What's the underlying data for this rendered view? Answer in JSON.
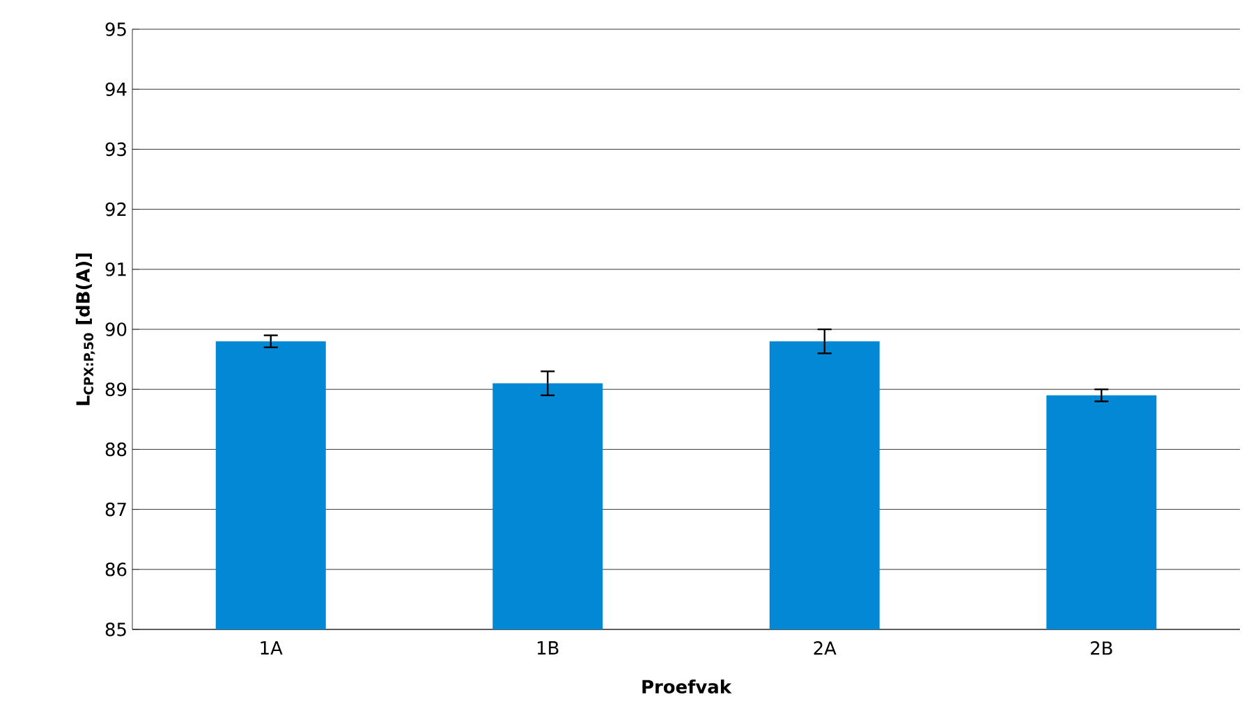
{
  "chart_data": {
    "type": "bar",
    "xlabel": "Proefvak",
    "ylabel": "**L**$_{CPX:P,50}$ [dB(A)]",
    "categories": [
      "1A",
      "1B",
      "2A",
      "2B"
    ],
    "values": [
      89.8,
      89.1,
      89.8,
      88.9
    ],
    "errors": [
      0.1,
      0.2,
      0.2,
      0.1
    ],
    "color": "#0288d4",
    "ylim": [
      85,
      95
    ],
    "yticks": [
      85,
      86,
      87,
      88,
      89,
      90,
      91,
      92,
      93,
      94,
      95
    ],
    "grid": "y"
  }
}
